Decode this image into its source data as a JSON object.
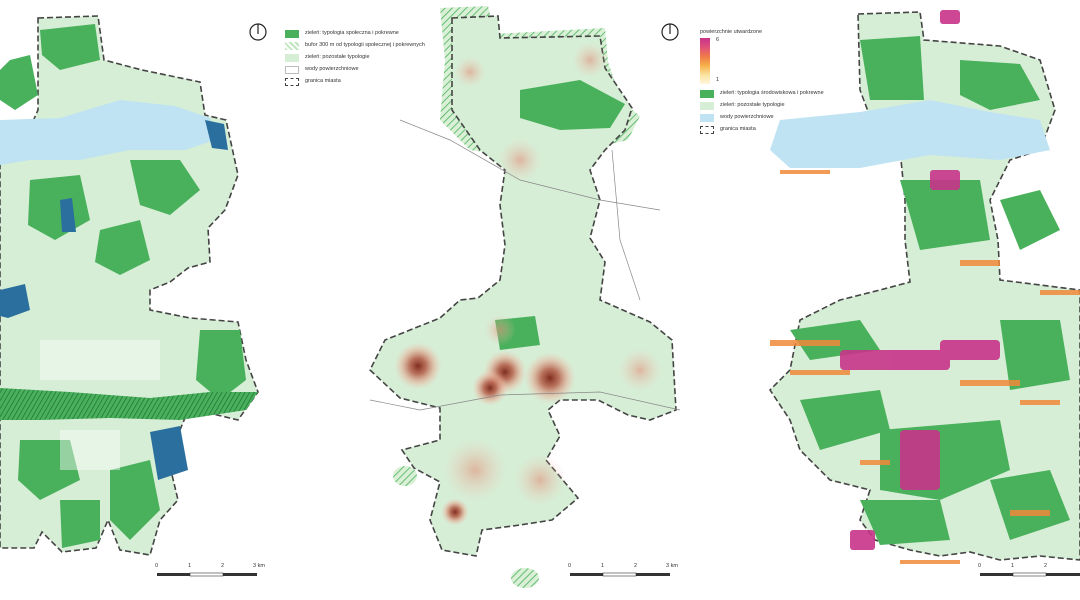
{
  "maps": [
    {
      "legend": [
        {
          "label": "zieleń: typologia społeczna i pokrewne",
          "swatch": "#49b05c",
          "style": "solid"
        },
        {
          "label": "bufor 300 m od typologii społecznej i pokrewnych",
          "swatch": "#bfe6bf",
          "style": "hatch"
        },
        {
          "label": "zieleń: pozostałe typologie",
          "swatch": "#d6eed6",
          "style": "solid"
        },
        {
          "label": "wody powierzchniowe",
          "swatch": "#ffffff",
          "style": "outline"
        },
        {
          "label": "granica miasta",
          "swatch": "#444444",
          "style": "dashed"
        }
      ],
      "scale": {
        "ticks": [
          "0",
          "1",
          "2",
          "3 km"
        ]
      }
    },
    {
      "legend_ramp": {
        "title": "powierzchnie utwardzone",
        "max": "6",
        "min": "1"
      },
      "legend": [
        {
          "label": "zieleń: typologia środowiskowa i pokrewne",
          "swatch": "#49b05c",
          "style": "solid"
        },
        {
          "label": "zieleń: pozostałe typologie",
          "swatch": "#d6eed6",
          "style": "solid"
        },
        {
          "label": "wody powierzchniowe",
          "swatch": "#bfe3f2",
          "style": "solid"
        },
        {
          "label": "granica miasta",
          "swatch": "#444444",
          "style": "dashed"
        }
      ],
      "scale": {
        "ticks": [
          "0",
          "1",
          "2",
          "3 km"
        ]
      }
    },
    {
      "scale": {
        "ticks": [
          "0",
          "1",
          "2"
        ]
      }
    }
  ],
  "icons": {
    "north": "north-arrow-icon"
  },
  "colors": {
    "green_light": "#d6eed6",
    "green_mid": "#49b05c",
    "green_dark": "#2f8f45",
    "water_light": "#bfe3f2",
    "water_dark": "#2a6f9e",
    "heat": "#9b3a2a",
    "urban": "#c8338a",
    "orange": "#f08a3a",
    "boundary": "#444444"
  }
}
